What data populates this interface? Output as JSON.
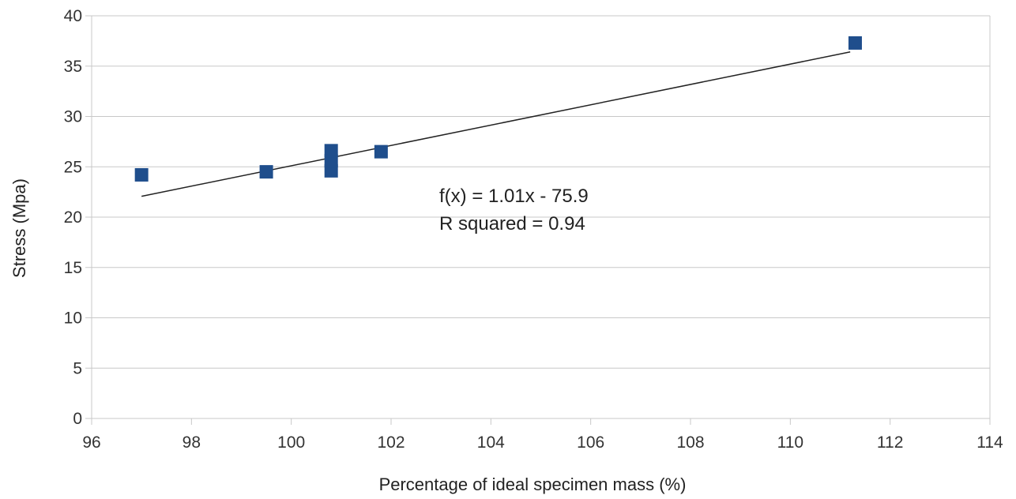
{
  "chart_data": {
    "type": "scatter",
    "xlabel": "Percentage of ideal specimen mass (%)",
    "ylabel": "Stress (Mpa)",
    "xlim": [
      96,
      114
    ],
    "ylim": [
      0,
      40
    ],
    "xticks": [
      96,
      98,
      100,
      102,
      104,
      106,
      108,
      110,
      112,
      114
    ],
    "yticks": [
      0,
      5,
      10,
      15,
      20,
      25,
      30,
      35,
      40
    ],
    "grid": "horizontal",
    "series": [
      {
        "color": "#1f4e8c",
        "marker": "square",
        "points": [
          {
            "x": 97.0,
            "y": 24.2
          },
          {
            "x": 99.5,
            "y": 24.5
          },
          {
            "x": 100.8,
            "y": 24.6
          },
          {
            "x": 100.8,
            "y": 25.6
          },
          {
            "x": 100.8,
            "y": 26.6
          },
          {
            "x": 101.8,
            "y": 26.5
          },
          {
            "x": 111.3,
            "y": 37.3
          }
        ]
      }
    ],
    "trendline": {
      "type": "linear",
      "slope": 1.01,
      "intercept": -75.9,
      "x_range": [
        97.0,
        111.2
      ],
      "color": "#222222"
    },
    "annotations": [
      "f(x) = 1.01x - 75.9",
      "R squared = 0.94"
    ]
  }
}
